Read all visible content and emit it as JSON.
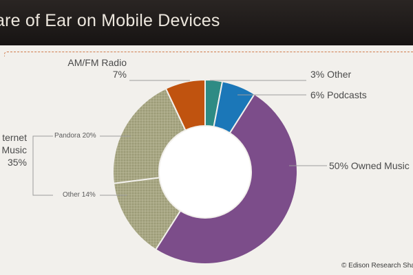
{
  "title": "are of Ear on Mobile Devices",
  "copyright": "© Edison Research Share",
  "colors": {
    "owned_music": "#7c4d8a",
    "internet_music": "#a6a582",
    "am_fm": "#c0530f",
    "other": "#2e8b84",
    "podcasts": "#1b77b8"
  },
  "labels": {
    "amfm_name": "AM/FM Radio",
    "amfm_pct": "7%",
    "other": "3%  Other",
    "podcasts": "6%  Podcasts",
    "owned": "50% Owned Music",
    "internet_l1": "ternet",
    "internet_l2": "Music",
    "internet_l3": "35%",
    "pandora": "Pandora 20%",
    "other_internet": "Other 14%"
  },
  "chart_data": {
    "type": "pie",
    "style": "donut",
    "categories": [
      "Other",
      "Podcasts",
      "Owned Music",
      "Other (Internet)",
      "Pandora",
      "AM/FM Radio"
    ],
    "values": [
      3,
      6,
      50,
      14,
      20,
      7
    ],
    "groups": [
      {
        "name": "Internet Music",
        "value": 35,
        "members": [
          "Pandora",
          "Other (Internet)"
        ]
      }
    ]
  }
}
